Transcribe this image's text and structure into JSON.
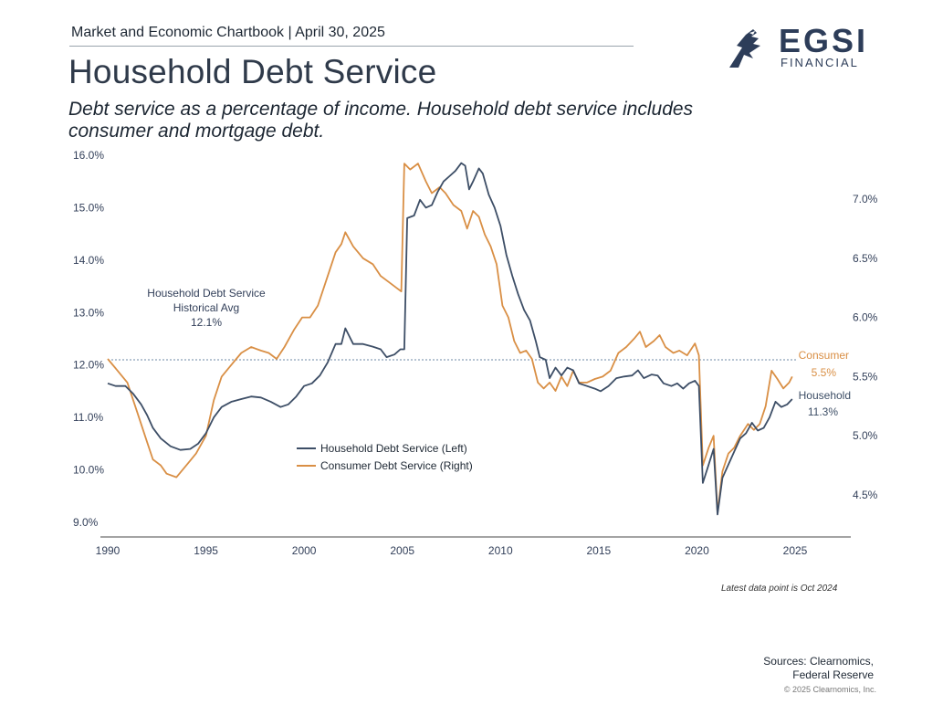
{
  "header": {
    "text": "Market and Economic Chartbook | April 30, 2025",
    "title": "Household Debt Service",
    "subtitle": "Debt service as a percentage of income. Household debt service includes consumer and mortgage debt."
  },
  "logo": {
    "name": "EGSI",
    "sub": "FINANCIAL",
    "icon": "eagle-icon"
  },
  "colors": {
    "household": "#3d4e66",
    "consumer": "#d98f45",
    "avg_line": "#6d8aa6"
  },
  "chart_data": {
    "type": "line",
    "x_ticks": [
      "1990",
      "1995",
      "2000",
      "2005",
      "2010",
      "2015",
      "2020",
      "2025"
    ],
    "x_tick_values": [
      1990,
      1995,
      2000,
      2005,
      2010,
      2015,
      2020,
      2025
    ],
    "xlim": [
      1990,
      2028
    ],
    "left_axis": {
      "ylim": [
        8.7,
        16.0
      ],
      "ticks": [
        "9.0%",
        "10.0%",
        "11.0%",
        "12.0%",
        "13.0%",
        "14.0%",
        "15.0%",
        "16.0%"
      ],
      "tick_values": [
        9,
        10,
        11,
        12,
        13,
        14,
        15,
        16
      ]
    },
    "right_axis": {
      "ylim": [
        4.2,
        7.45
      ],
      "ticks": [
        "4.5%",
        "5.0%",
        "5.5%",
        "6.0%",
        "6.5%",
        "7.0%"
      ],
      "tick_values": [
        4.5,
        5.0,
        5.5,
        6.0,
        6.5,
        7.0
      ]
    },
    "historical_avg": {
      "value": 12.1,
      "label_lines": [
        "Household Debt Service",
        "Historical Avg",
        "12.1%"
      ]
    },
    "series": [
      {
        "name": "Household Debt Service (Left)",
        "axis": "left",
        "end_label": [
          "Household",
          "11.3%"
        ],
        "points": [
          [
            1990,
            11.65
          ],
          [
            1990.4,
            11.6
          ],
          [
            1990.9,
            11.6
          ],
          [
            1991.3,
            11.45
          ],
          [
            1991.7,
            11.25
          ],
          [
            1992,
            11.05
          ],
          [
            1992.3,
            10.8
          ],
          [
            1992.7,
            10.6
          ],
          [
            1993.2,
            10.45
          ],
          [
            1993.7,
            10.38
          ],
          [
            1994.2,
            10.4
          ],
          [
            1994.6,
            10.5
          ],
          [
            1995,
            10.7
          ],
          [
            1995.4,
            11.0
          ],
          [
            1995.8,
            11.2
          ],
          [
            1996.3,
            11.3
          ],
          [
            1996.8,
            11.35
          ],
          [
            1997.3,
            11.4
          ],
          [
            1997.8,
            11.38
          ],
          [
            1998.3,
            11.3
          ],
          [
            1998.8,
            11.2
          ],
          [
            1999.2,
            11.25
          ],
          [
            1999.6,
            11.4
          ],
          [
            2000,
            11.6
          ],
          [
            2000.4,
            11.65
          ],
          [
            2000.8,
            11.8
          ],
          [
            2001.2,
            12.05
          ],
          [
            2001.6,
            12.4
          ],
          [
            2001.9,
            12.4
          ],
          [
            2002.1,
            12.7
          ],
          [
            2002.5,
            12.4
          ],
          [
            2003,
            12.4
          ],
          [
            2003.5,
            12.35
          ],
          [
            2003.9,
            12.3
          ],
          [
            2004.2,
            12.15
          ],
          [
            2004.6,
            12.2
          ],
          [
            2004.9,
            12.3
          ],
          [
            2005.1,
            12.3
          ],
          [
            2005.25,
            14.8
          ],
          [
            2005.6,
            14.85
          ],
          [
            2005.9,
            15.15
          ],
          [
            2006.2,
            15.0
          ],
          [
            2006.5,
            15.05
          ],
          [
            2006.8,
            15.3
          ],
          [
            2007.1,
            15.5
          ],
          [
            2007.4,
            15.6
          ],
          [
            2007.7,
            15.7
          ],
          [
            2008,
            15.85
          ],
          [
            2008.2,
            15.8
          ],
          [
            2008.4,
            15.35
          ],
          [
            2008.6,
            15.5
          ],
          [
            2008.9,
            15.75
          ],
          [
            2009.1,
            15.65
          ],
          [
            2009.4,
            15.25
          ],
          [
            2009.7,
            15.0
          ],
          [
            2010,
            14.65
          ],
          [
            2010.3,
            14.1
          ],
          [
            2010.6,
            13.7
          ],
          [
            2010.9,
            13.35
          ],
          [
            2011.2,
            13.05
          ],
          [
            2011.5,
            12.85
          ],
          [
            2011.8,
            12.45
          ],
          [
            2012,
            12.15
          ],
          [
            2012.3,
            12.1
          ],
          [
            2012.5,
            11.75
          ],
          [
            2012.8,
            11.95
          ],
          [
            2013.1,
            11.8
          ],
          [
            2013.4,
            11.95
          ],
          [
            2013.7,
            11.9
          ],
          [
            2014,
            11.65
          ],
          [
            2014.4,
            11.6
          ],
          [
            2014.8,
            11.55
          ],
          [
            2015.1,
            11.5
          ],
          [
            2015.5,
            11.6
          ],
          [
            2015.9,
            11.75
          ],
          [
            2016.3,
            11.78
          ],
          [
            2016.7,
            11.8
          ],
          [
            2017,
            11.9
          ],
          [
            2017.3,
            11.75
          ],
          [
            2017.7,
            11.82
          ],
          [
            2018,
            11.8
          ],
          [
            2018.3,
            11.65
          ],
          [
            2018.7,
            11.6
          ],
          [
            2019,
            11.65
          ],
          [
            2019.3,
            11.55
          ],
          [
            2019.6,
            11.65
          ],
          [
            2019.9,
            11.7
          ],
          [
            2020.1,
            11.6
          ],
          [
            2020.3,
            9.75
          ],
          [
            2020.6,
            10.1
          ],
          [
            2020.85,
            10.4
          ],
          [
            2021.05,
            9.15
          ],
          [
            2021.3,
            9.85
          ],
          [
            2021.6,
            10.1
          ],
          [
            2021.9,
            10.35
          ],
          [
            2022.2,
            10.6
          ],
          [
            2022.5,
            10.7
          ],
          [
            2022.8,
            10.9
          ],
          [
            2023.1,
            10.75
          ],
          [
            2023.4,
            10.8
          ],
          [
            2023.7,
            11.0
          ],
          [
            2024,
            11.3
          ],
          [
            2024.3,
            11.2
          ],
          [
            2024.6,
            11.25
          ],
          [
            2024.85,
            11.35
          ]
        ]
      },
      {
        "name": "Consumer Debt Service (Right)",
        "axis": "right",
        "end_label": [
          "Consumer",
          "5.5%"
        ],
        "points": [
          [
            1990,
            5.65
          ],
          [
            1990.5,
            5.55
          ],
          [
            1991,
            5.45
          ],
          [
            1991.5,
            5.2
          ],
          [
            1992,
            4.95
          ],
          [
            1992.3,
            4.8
          ],
          [
            1992.7,
            4.75
          ],
          [
            1993,
            4.68
          ],
          [
            1993.5,
            4.65
          ],
          [
            1994,
            4.75
          ],
          [
            1994.5,
            4.85
          ],
          [
            1995,
            5.0
          ],
          [
            1995.4,
            5.3
          ],
          [
            1995.8,
            5.5
          ],
          [
            1996.3,
            5.6
          ],
          [
            1996.8,
            5.7
          ],
          [
            1997.3,
            5.75
          ],
          [
            1997.8,
            5.72
          ],
          [
            1998.2,
            5.7
          ],
          [
            1998.6,
            5.65
          ],
          [
            1999,
            5.75
          ],
          [
            1999.5,
            5.9
          ],
          [
            1999.9,
            6.0
          ],
          [
            2000.3,
            6.0
          ],
          [
            2000.7,
            6.1
          ],
          [
            2001.2,
            6.35
          ],
          [
            2001.6,
            6.55
          ],
          [
            2001.9,
            6.62
          ],
          [
            2002.1,
            6.72
          ],
          [
            2002.5,
            6.6
          ],
          [
            2003,
            6.5
          ],
          [
            2003.5,
            6.45
          ],
          [
            2003.9,
            6.35
          ],
          [
            2004.3,
            6.3
          ],
          [
            2004.7,
            6.25
          ],
          [
            2004.95,
            6.22
          ],
          [
            2005.1,
            7.3
          ],
          [
            2005.4,
            7.25
          ],
          [
            2005.8,
            7.3
          ],
          [
            2006.2,
            7.15
          ],
          [
            2006.5,
            7.05
          ],
          [
            2006.9,
            7.1
          ],
          [
            2007.2,
            7.05
          ],
          [
            2007.6,
            6.95
          ],
          [
            2008,
            6.9
          ],
          [
            2008.3,
            6.75
          ],
          [
            2008.6,
            6.9
          ],
          [
            2008.9,
            6.85
          ],
          [
            2009.2,
            6.7
          ],
          [
            2009.5,
            6.6
          ],
          [
            2009.8,
            6.45
          ],
          [
            2010.1,
            6.1
          ],
          [
            2010.4,
            6.0
          ],
          [
            2010.7,
            5.8
          ],
          [
            2011,
            5.7
          ],
          [
            2011.3,
            5.72
          ],
          [
            2011.6,
            5.65
          ],
          [
            2011.9,
            5.45
          ],
          [
            2012.2,
            5.4
          ],
          [
            2012.5,
            5.45
          ],
          [
            2012.8,
            5.38
          ],
          [
            2013.1,
            5.5
          ],
          [
            2013.4,
            5.42
          ],
          [
            2013.7,
            5.55
          ],
          [
            2014,
            5.45
          ],
          [
            2014.4,
            5.45
          ],
          [
            2014.8,
            5.48
          ],
          [
            2015.2,
            5.5
          ],
          [
            2015.6,
            5.55
          ],
          [
            2016,
            5.7
          ],
          [
            2016.4,
            5.75
          ],
          [
            2016.8,
            5.82
          ],
          [
            2017.1,
            5.88
          ],
          [
            2017.4,
            5.75
          ],
          [
            2017.8,
            5.8
          ],
          [
            2018.1,
            5.85
          ],
          [
            2018.4,
            5.75
          ],
          [
            2018.8,
            5.7
          ],
          [
            2019.1,
            5.72
          ],
          [
            2019.5,
            5.68
          ],
          [
            2019.9,
            5.78
          ],
          [
            2020.1,
            5.68
          ],
          [
            2020.3,
            4.75
          ],
          [
            2020.6,
            4.9
          ],
          [
            2020.85,
            5.0
          ],
          [
            2021.05,
            4.35
          ],
          [
            2021.3,
            4.7
          ],
          [
            2021.6,
            4.85
          ],
          [
            2021.9,
            4.9
          ],
          [
            2022.2,
            5.0
          ],
          [
            2022.6,
            5.1
          ],
          [
            2022.9,
            5.05
          ],
          [
            2023.2,
            5.1
          ],
          [
            2023.5,
            5.25
          ],
          [
            2023.8,
            5.55
          ],
          [
            2024.1,
            5.48
          ],
          [
            2024.4,
            5.4
          ],
          [
            2024.7,
            5.45
          ],
          [
            2024.85,
            5.5
          ]
        ]
      }
    ],
    "legend": {
      "position": "center",
      "items": [
        "Household Debt Service (Left)",
        "Consumer Debt Service (Right)"
      ]
    }
  },
  "footer": {
    "note": "Latest data point is Oct 2024",
    "sources_line1": "Sources: Clearnomics,",
    "sources_line2": "Federal Reserve",
    "copyright": "© 2025 Clearnomics, Inc."
  }
}
